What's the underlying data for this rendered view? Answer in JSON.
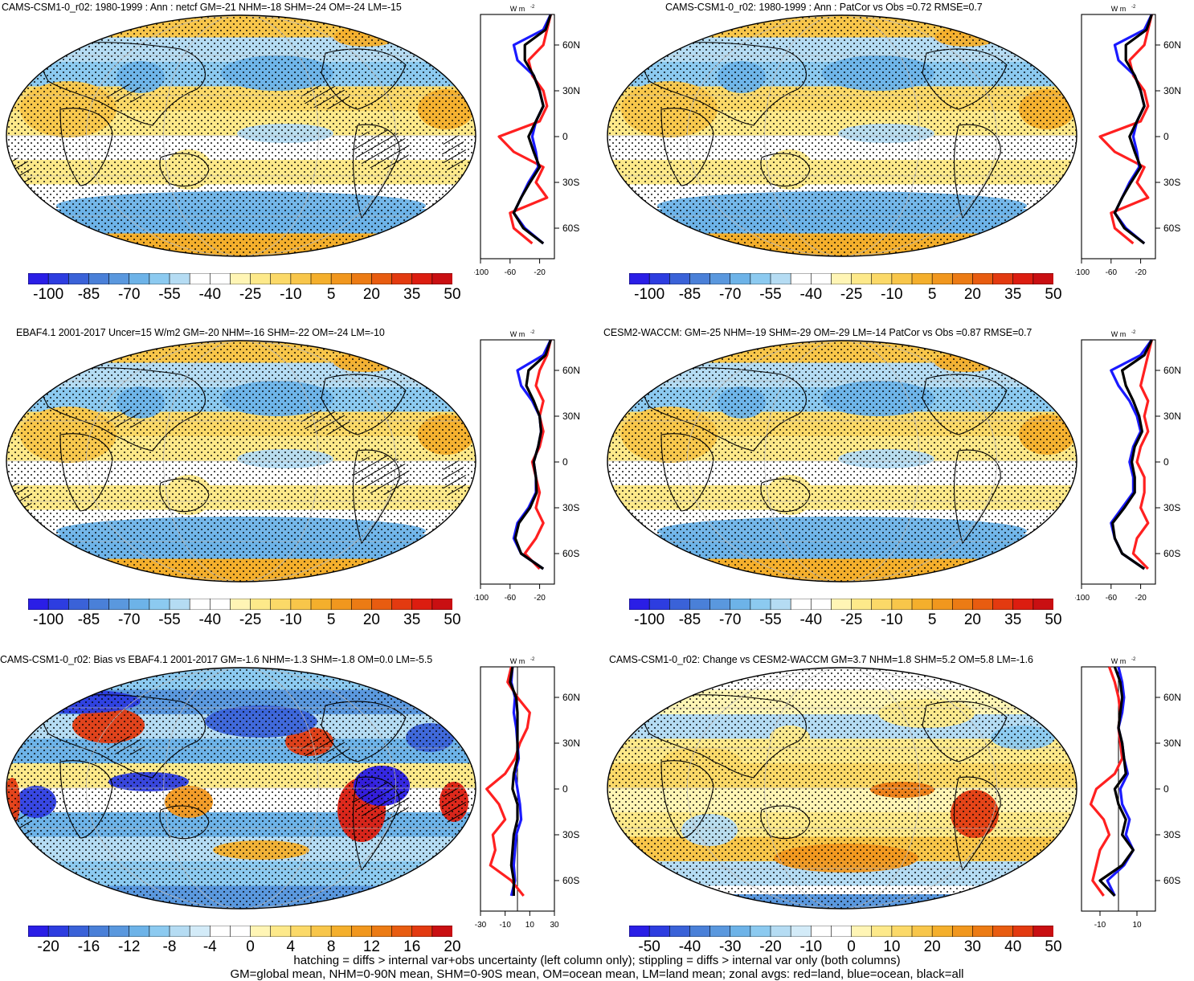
{
  "panels": [
    {
      "id": "p1",
      "title": "CAMS-CSM1-0_r02: 1980-1999 : Ann : netcf GM=-21 NHM=-18 SHM=-24 OM=-24 LM=-15",
      "colorbar_labels": [
        "-100",
        "-85",
        "-70",
        "-55",
        "-40",
        "-25",
        "-10",
        "5",
        "20",
        "35",
        "50"
      ],
      "colorbar_kind": "main",
      "zonal_ticks": [
        "-100",
        "-60",
        "-20"
      ],
      "hatched": true,
      "bias_style": false
    },
    {
      "id": "p2",
      "title": "CAMS-CSM1-0_r02: 1980-1999 : Ann : PatCor vs Obs =0.72 RMSE=0.7",
      "colorbar_labels": [
        "-100",
        "-85",
        "-70",
        "-55",
        "-40",
        "-25",
        "-10",
        "5",
        "20",
        "35",
        "50"
      ],
      "colorbar_kind": "main",
      "zonal_ticks": [
        "-100",
        "-60",
        "-20"
      ],
      "hatched": false,
      "bias_style": false
    },
    {
      "id": "p3",
      "title": "EBAF4.1 2001-2017 Uncer=15 W/m2 GM=-20 NHM=-16 SHM=-22 OM=-24 LM=-10",
      "colorbar_labels": [
        "-100",
        "-85",
        "-70",
        "-55",
        "-40",
        "-25",
        "-10",
        "5",
        "20",
        "35",
        "50"
      ],
      "colorbar_kind": "main",
      "zonal_ticks": [
        "-100",
        "-60",
        "-20"
      ],
      "hatched": true,
      "bias_style": false
    },
    {
      "id": "p4",
      "title": "CESM2-WACCM: GM=-25 NHM=-19 SHM=-29 OM=-29 LM=-14 PatCor vs Obs =0.87 RMSE=0.7",
      "colorbar_labels": [
        "-100",
        "-85",
        "-70",
        "-55",
        "-40",
        "-25",
        "-10",
        "5",
        "20",
        "35",
        "50"
      ],
      "colorbar_kind": "main",
      "zonal_ticks": [
        "-100",
        "-60",
        "-20"
      ],
      "hatched": false,
      "bias_style": false
    },
    {
      "id": "p5",
      "title": "CAMS-CSM1-0_r02: Bias vs EBAF4.1 2001-2017 GM=-1.6 NHM=-1.3 SHM=-1.8 OM=0.0 LM=-5.5",
      "colorbar_labels": [
        "-20",
        "-16",
        "-12",
        "-8",
        "-4",
        "0",
        "4",
        "8",
        "12",
        "16",
        "20"
      ],
      "colorbar_kind": "diff",
      "zonal_ticks": [
        "-30",
        "-10",
        "10",
        "30"
      ],
      "hatched": true,
      "bias_style": true
    },
    {
      "id": "p6",
      "title": "CAMS-CSM1-0_r02: Change vs CESM2-WACCM GM=3.7 NHM=1.8 SHM=5.2 OM=5.8 LM=-1.6",
      "colorbar_labels": [
        "-50",
        "-40",
        "-30",
        "-20",
        "-10",
        "0",
        "10",
        "20",
        "30",
        "40",
        "50"
      ],
      "colorbar_kind": "diff",
      "zonal_ticks": [
        "-10",
        "10"
      ],
      "hatched": false,
      "bias_style": false
    }
  ],
  "zonal_common": {
    "unit_label": "W m",
    "unit_exp": "-2",
    "lat_labels": [
      "60N",
      "30N",
      "0",
      "30S",
      "60S"
    ]
  },
  "colormaps": {
    "main": [
      "#2a1ee6",
      "#2d3de0",
      "#3a62d8",
      "#4a80d8",
      "#5a98de",
      "#6db3e8",
      "#8ccaf0",
      "#b5dcf3",
      "#ffffff",
      "#ffffff",
      "#fff5b5",
      "#fde98a",
      "#fbd968",
      "#f8c64a",
      "#f4af2c",
      "#f1971e",
      "#ec7b14",
      "#e85c10",
      "#e33a10",
      "#dc1d10",
      "#c90f12"
    ],
    "diff": [
      "#2a1ee6",
      "#2d3de0",
      "#3a62d8",
      "#4a80d8",
      "#5a98de",
      "#6db3e8",
      "#8ccaf0",
      "#b5dcf3",
      "#d3ebf8",
      "#ffffff",
      "#ffffff",
      "#fff5b5",
      "#fde98a",
      "#fbd968",
      "#f8c64a",
      "#f4af2c",
      "#f1971e",
      "#ec7b14",
      "#e85c10",
      "#e33a10",
      "#c90f12"
    ]
  },
  "footer": {
    "line1": "hatching = diffs > internal var+obs uncertainty (left column only); stippling = diffs > internal var only (both columns)",
    "line2": "GM=global mean, NHM=0-90N mean, SHM=0-90S mean, OM=ocean mean, LM=land mean; zonal avgs: red=land, blue=ocean, black=all"
  },
  "chart_data": [
    {
      "type": "heatmap",
      "title": "CAMS-CSM1-0_r02: 1980-1999 : Ann : netcf GM=-21 NHM=-18 SHM=-24 OM=-24 LM=-15",
      "units": "W m-2",
      "colorbar_ticks": [
        -100,
        -85,
        -70,
        -55,
        -40,
        -25,
        -10,
        5,
        20,
        35,
        50
      ],
      "zonal_profiles": {
        "ylim": [
          -80,
          80
        ],
        "xlim": [
          -100,
          0
        ],
        "lat": [
          80,
          70,
          60,
          50,
          40,
          30,
          20,
          10,
          0,
          -10,
          -20,
          -30,
          -40,
          -50,
          -60,
          -70
        ],
        "land": [
          -5,
          -10,
          -15,
          -35,
          -30,
          -15,
          -10,
          -20,
          -75,
          -55,
          -15,
          -25,
          -10,
          -60,
          -55,
          -30
        ],
        "ocean": [
          -5,
          -15,
          -55,
          -50,
          -28,
          -20,
          -15,
          -25,
          -30,
          -25,
          -22,
          -35,
          -45,
          -55,
          -40,
          -15
        ],
        "all": [
          -5,
          -12,
          -40,
          -40,
          -28,
          -20,
          -15,
          -25,
          -35,
          -28,
          -20,
          -33,
          -45,
          -55,
          -42,
          -15
        ]
      }
    },
    {
      "type": "heatmap",
      "title": "CAMS-CSM1-0_r02: 1980-1999 : Ann : PatCor vs Obs =0.72 RMSE=0.7",
      "units": "W m-2",
      "colorbar_ticks": [
        -100,
        -85,
        -70,
        -55,
        -40,
        -25,
        -10,
        5,
        20,
        35,
        50
      ],
      "zonal_profiles": {
        "ylim": [
          -80,
          80
        ],
        "xlim": [
          -100,
          0
        ],
        "lat": [
          80,
          70,
          60,
          50,
          40,
          30,
          20,
          10,
          0,
          -10,
          -20,
          -30,
          -40,
          -50,
          -60,
          -70
        ],
        "land": [
          -5,
          -10,
          -15,
          -35,
          -30,
          -15,
          -10,
          -20,
          -75,
          -55,
          -15,
          -25,
          -10,
          -60,
          -55,
          -30
        ],
        "ocean": [
          -5,
          -15,
          -55,
          -50,
          -28,
          -20,
          -15,
          -25,
          -30,
          -25,
          -22,
          -35,
          -45,
          -55,
          -40,
          -15
        ],
        "all": [
          -5,
          -12,
          -40,
          -40,
          -28,
          -20,
          -15,
          -25,
          -35,
          -28,
          -20,
          -33,
          -45,
          -55,
          -42,
          -15
        ]
      }
    },
    {
      "type": "heatmap",
      "title": "EBAF4.1 2001-2017 Uncer=15 W/m2 GM=-20 NHM=-16 SHM=-22 OM=-24 LM=-10",
      "units": "W m-2",
      "colorbar_ticks": [
        -100,
        -85,
        -70,
        -55,
        -40,
        -25,
        -10,
        5,
        20,
        35,
        50
      ],
      "zonal_profiles": {
        "ylim": [
          -80,
          80
        ],
        "xlim": [
          -100,
          0
        ],
        "lat": [
          80,
          70,
          60,
          50,
          40,
          30,
          20,
          10,
          0,
          -10,
          -20,
          -30,
          -40,
          -50,
          -60,
          -70
        ],
        "land": [
          -5,
          -10,
          -20,
          -25,
          -15,
          -20,
          -15,
          -20,
          -30,
          -25,
          -20,
          -25,
          -15,
          -25,
          -40,
          -20
        ],
        "ocean": [
          -5,
          -15,
          -50,
          -45,
          -30,
          -20,
          -18,
          -22,
          -28,
          -25,
          -25,
          -35,
          -50,
          -55,
          -45,
          -15
        ],
        "all": [
          -5,
          -12,
          -35,
          -38,
          -28,
          -20,
          -18,
          -22,
          -28,
          -25,
          -24,
          -33,
          -48,
          -53,
          -45,
          -15
        ]
      }
    },
    {
      "type": "heatmap",
      "title": "CESM2-WACCM: GM=-25 NHM=-19 SHM=-29 OM=-29 LM=-14 PatCor vs Obs =0.87 RMSE=0.7",
      "units": "W m-2",
      "colorbar_ticks": [
        -100,
        -85,
        -70,
        -55,
        -40,
        -25,
        -10,
        5,
        20,
        35,
        50
      ],
      "zonal_profiles": {
        "ylim": [
          -80,
          80
        ],
        "xlim": [
          -100,
          0
        ],
        "lat": [
          80,
          70,
          60,
          50,
          40,
          30,
          20,
          10,
          0,
          -10,
          -20,
          -30,
          -40,
          -50,
          -60,
          -70
        ],
        "land": [
          -5,
          -10,
          -15,
          -20,
          -10,
          -15,
          -10,
          -20,
          -25,
          -15,
          -15,
          -20,
          -10,
          -25,
          -30,
          -10
        ],
        "ocean": [
          -5,
          -20,
          -60,
          -50,
          -35,
          -25,
          -20,
          -30,
          -35,
          -30,
          -30,
          -45,
          -60,
          -55,
          -45,
          -15
        ],
        "all": [
          -5,
          -15,
          -45,
          -40,
          -30,
          -22,
          -18,
          -28,
          -32,
          -28,
          -28,
          -42,
          -58,
          -55,
          -45,
          -15
        ]
      }
    },
    {
      "type": "heatmap",
      "title": "CAMS-CSM1-0_r02: Bias vs EBAF4.1 2001-2017 GM=-1.6 NHM=-1.3 SHM=-1.8 OM=0.0 LM=-5.5",
      "units": "W m-2",
      "colorbar_ticks": [
        -20,
        -16,
        -12,
        -8,
        -4,
        0,
        4,
        8,
        12,
        16,
        20
      ],
      "zonal_profiles": {
        "ylim": [
          -80,
          80
        ],
        "xlim": [
          -30,
          30
        ],
        "lat": [
          80,
          70,
          60,
          50,
          40,
          30,
          20,
          10,
          0,
          -10,
          -20,
          -30,
          -40,
          -50,
          -60,
          -70
        ],
        "land": [
          -5,
          -8,
          0,
          10,
          8,
          2,
          -2,
          -10,
          -25,
          -15,
          -10,
          -20,
          -18,
          -22,
          -5,
          5
        ],
        "ocean": [
          -4,
          -5,
          -2,
          -3,
          -1,
          0,
          1,
          -2,
          0,
          2,
          3,
          -1,
          -2,
          -3,
          -2,
          -5
        ],
        "all": [
          -4,
          -6,
          -1,
          0,
          0,
          0,
          0,
          -3,
          -4,
          0,
          0,
          -3,
          -4,
          -5,
          -3,
          -3
        ]
      }
    },
    {
      "type": "heatmap",
      "title": "CAMS-CSM1-0_r02: Change vs CESM2-WACCM GM=3.7 NHM=1.8 SHM=5.2 OM=5.8 LM=-1.6",
      "units": "W m-2",
      "colorbar_ticks": [
        -50,
        -40,
        -30,
        -20,
        -10,
        0,
        10,
        20,
        30,
        40,
        50
      ],
      "zonal_profiles": {
        "ylim": [
          -80,
          80
        ],
        "xlim": [
          -20,
          20
        ],
        "lat": [
          80,
          70,
          60,
          50,
          40,
          30,
          20,
          10,
          0,
          -10,
          -20,
          -30,
          -40,
          -50,
          -60,
          -70
        ],
        "land": [
          -5,
          -2,
          0,
          1,
          0,
          1,
          2,
          -2,
          -12,
          -15,
          -8,
          -5,
          -10,
          -12,
          -14,
          -8
        ],
        "ocean": [
          0,
          2,
          3,
          2,
          0,
          2,
          3,
          5,
          1,
          2,
          6,
          4,
          8,
          3,
          -6,
          -2
        ],
        "all": [
          -2,
          1,
          2,
          1,
          0,
          2,
          3,
          4,
          -2,
          0,
          4,
          2,
          8,
          2,
          -10,
          -2
        ]
      }
    }
  ]
}
